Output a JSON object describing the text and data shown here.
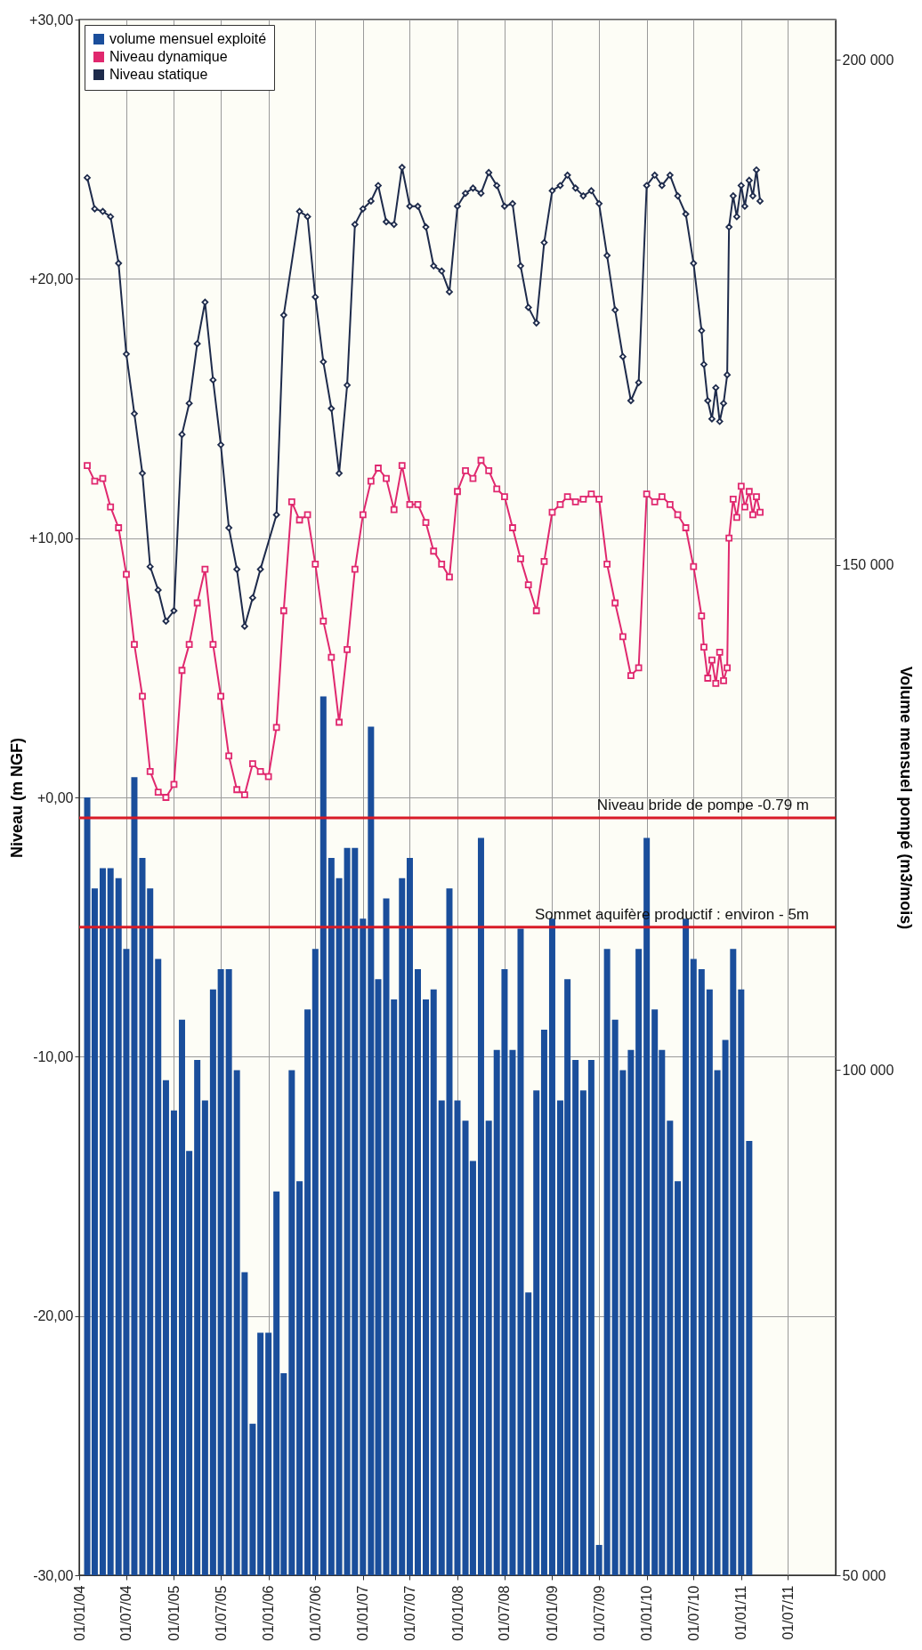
{
  "chart_data": {
    "type": "line",
    "ylabel": "Niveau (m NGF)",
    "y2label": "Volume mensuel pompé (m3/mois)",
    "xlim": [
      "2004-01-01",
      "2012-01-01"
    ],
    "xticks": [
      {
        "value": "2004-01-01",
        "label": "01/01/04"
      },
      {
        "value": "2004-07-01",
        "label": "01/07/04"
      },
      {
        "value": "2005-01-01",
        "label": "01/01/05"
      },
      {
        "value": "2005-07-01",
        "label": "01/07/05"
      },
      {
        "value": "2006-01-01",
        "label": "01/01/06"
      },
      {
        "value": "2006-07-01",
        "label": "01/07/06"
      },
      {
        "value": "2007-01-01",
        "label": "01/01/07"
      },
      {
        "value": "2007-07-01",
        "label": "01/07/07"
      },
      {
        "value": "2008-01-01",
        "label": "01/01/08"
      },
      {
        "value": "2008-07-01",
        "label": "01/07/08"
      },
      {
        "value": "2009-01-01",
        "label": "01/01/09"
      },
      {
        "value": "2009-07-01",
        "label": "01/07/09"
      },
      {
        "value": "2010-01-01",
        "label": "01/01/10"
      },
      {
        "value": "2010-07-01",
        "label": "01/07/10"
      },
      {
        "value": "2011-01-01",
        "label": "01/01/11"
      },
      {
        "value": "2011-07-01",
        "label": "01/07/11"
      }
    ],
    "ylim": [
      -30,
      30
    ],
    "yticks": [
      {
        "value": 30,
        "label": "+30,00"
      },
      {
        "value": 20,
        "label": "+20,00"
      },
      {
        "value": 10,
        "label": "+10,00"
      },
      {
        "value": 0,
        "label": "+0,00"
      },
      {
        "value": -10,
        "label": "-10,00"
      },
      {
        "value": -20,
        "label": "-20,00"
      },
      {
        "value": -30,
        "label": "-30,00"
      }
    ],
    "y2lim": [
      50000,
      204000
    ],
    "y2ticks": [
      {
        "value": 50000,
        "label": "50 000"
      },
      {
        "value": 100000,
        "label": "100 000"
      },
      {
        "value": 150000,
        "label": "150 000"
      },
      {
        "value": 200000,
        "label": "200 000"
      }
    ],
    "grid": true,
    "legend": "top left",
    "ref_lines": [
      {
        "axis": "y",
        "value": -0.79,
        "label": "Niveau bride de pompe -0.79 m",
        "color": "#d81b27"
      },
      {
        "axis": "y",
        "value": -5,
        "label": "Sommet aquifère productif : environ - 5m",
        "color": "#d81b27"
      }
    ],
    "series": [
      {
        "name": "volume mensuel exploité",
        "type": "bar",
        "axis": "y2",
        "color": "#1a4e9b",
        "x": [
          "2004-02",
          "2004-03",
          "2004-04",
          "2004-05",
          "2004-06",
          "2004-07",
          "2004-08",
          "2004-09",
          "2004-10",
          "2004-11",
          "2004-12",
          "2005-01",
          "2005-02",
          "2005-03",
          "2005-04",
          "2005-05",
          "2005-06",
          "2005-07",
          "2005-08",
          "2005-09",
          "2005-10",
          "2005-11",
          "2005-12",
          "2006-01",
          "2006-02",
          "2006-03",
          "2006-04",
          "2006-05",
          "2006-06",
          "2006-07",
          "2006-08",
          "2006-09",
          "2006-10",
          "2006-11",
          "2006-12",
          "2007-01",
          "2007-02",
          "2007-03",
          "2007-04",
          "2007-05",
          "2007-06",
          "2007-07",
          "2007-08",
          "2007-09",
          "2007-10",
          "2007-11",
          "2007-12",
          "2008-01",
          "2008-02",
          "2008-03",
          "2008-04",
          "2008-05",
          "2008-06",
          "2008-07",
          "2008-08",
          "2008-09",
          "2008-10",
          "2008-11",
          "2008-12",
          "2009-01",
          "2009-02",
          "2009-03",
          "2009-04",
          "2009-05",
          "2009-06",
          "2009-07",
          "2009-08",
          "2009-09",
          "2009-10",
          "2009-11",
          "2009-12",
          "2010-01",
          "2010-02",
          "2010-03",
          "2010-04",
          "2010-05",
          "2010-06",
          "2010-07",
          "2010-08",
          "2010-09",
          "2010-10",
          "2010-11",
          "2010-12",
          "2011-01",
          "2011-02"
        ],
        "values": [
          127000,
          118000,
          120000,
          120000,
          119000,
          112000,
          129000,
          121000,
          118000,
          111000,
          99000,
          96000,
          105000,
          92000,
          101000,
          97000,
          108000,
          110000,
          110000,
          100000,
          80000,
          65000,
          74000,
          74000,
          88000,
          70000,
          100000,
          89000,
          106000,
          112000,
          137000,
          121000,
          119000,
          122000,
          122000,
          115000,
          134000,
          109000,
          117000,
          107000,
          119000,
          121000,
          110000,
          107000,
          108000,
          97000,
          118000,
          97000,
          95000,
          91000,
          123000,
          95000,
          102000,
          110000,
          102000,
          114000,
          78000,
          98000,
          104000,
          115000,
          97000,
          109000,
          101000,
          98000,
          101000,
          53000,
          112000,
          105000,
          100000,
          102000,
          112000,
          123000,
          106000,
          102000,
          95000,
          89000,
          115000,
          111000,
          110000,
          108000,
          100000,
          103000,
          112000,
          108000,
          93000
        ]
      },
      {
        "name": "Niveau dynamique",
        "color": "#e0286e",
        "marker": "square",
        "x": [
          "2004-02",
          "2004-03",
          "2004-04",
          "2004-05",
          "2004-06",
          "2004-07",
          "2004-08",
          "2004-09",
          "2004-10",
          "2004-11",
          "2004-12",
          "2005-01",
          "2005-02",
          "2005-03",
          "2005-04",
          "2005-05",
          "2005-06",
          "2005-07",
          "2005-08",
          "2005-09",
          "2005-10",
          "2005-11",
          "2005-12",
          "2006-01",
          "2006-02",
          "2006-03",
          "2006-04",
          "2006-05",
          "2006-06",
          "2006-07",
          "2006-08",
          "2006-09",
          "2006-10",
          "2006-11",
          "2006-12",
          "2007-01",
          "2007-02",
          "2007-03",
          "2007-04",
          "2007-05",
          "2007-06",
          "2007-07",
          "2007-08",
          "2007-09",
          "2007-10",
          "2007-11",
          "2007-12",
          "2008-01",
          "2008-02",
          "2008-03",
          "2008-04",
          "2008-05",
          "2008-06",
          "2008-07",
          "2008-08",
          "2008-09",
          "2008-10",
          "2008-11",
          "2008-12",
          "2009-01",
          "2009-02",
          "2009-03",
          "2009-04",
          "2009-05",
          "2009-06",
          "2009-07",
          "2009-08",
          "2009-09",
          "2009-10",
          "2009-11",
          "2009-12",
          "2010-01",
          "2010-02",
          "2010-03",
          "2010-04",
          "2010-05",
          "2010-06",
          "2010-07",
          "2010-08",
          "2010-08-10",
          "2010-08-25",
          "2010-09-10",
          "2010-09-25",
          "2010-10-10",
          "2010-10-25",
          "2010-11-08",
          "2010-11-15",
          "2010-12-01",
          "2010-12-15",
          "2011-01-01",
          "2011-01-15",
          "2011-02-01",
          "2011-02-15",
          "2011-03-01",
          "2011-03-15"
        ],
        "values": [
          12.8,
          12.2,
          12.3,
          11.2,
          10.4,
          8.6,
          5.9,
          3.9,
          1.0,
          0.2,
          0.0,
          0.5,
          4.9,
          5.9,
          7.5,
          8.8,
          5.9,
          3.9,
          1.6,
          0.3,
          0.1,
          1.3,
          1.0,
          0.8,
          2.7,
          7.2,
          11.4,
          10.7,
          10.9,
          9.0,
          6.8,
          5.4,
          2.9,
          5.7,
          8.8,
          10.9,
          12.2,
          12.7,
          12.3,
          11.1,
          12.8,
          11.3,
          11.3,
          10.6,
          9.5,
          9.0,
          8.5,
          11.8,
          12.6,
          12.3,
          13.0,
          12.6,
          11.9,
          11.6,
          10.4,
          9.2,
          8.2,
          7.2,
          9.1,
          11.0,
          11.3,
          11.6,
          11.4,
          11.5,
          11.7,
          11.5,
          9.0,
          7.5,
          6.2,
          4.7,
          5.0,
          11.7,
          11.4,
          11.6,
          11.3,
          10.9,
          10.4,
          8.9,
          7.0,
          5.8,
          4.6,
          5.3,
          4.4,
          5.6,
          4.5,
          5.0,
          10.0,
          11.5,
          10.8,
          12.0,
          11.2,
          11.8,
          10.9,
          11.6,
          11.0
        ]
      },
      {
        "name": "Niveau statique",
        "color": "#1e2b4b",
        "marker": "diamond",
        "x": [
          "2004-02",
          "2004-03",
          "2004-04",
          "2004-05",
          "2004-06",
          "2004-07",
          "2004-08",
          "2004-09",
          "2004-10",
          "2004-11",
          "2004-12",
          "2005-01",
          "2005-02",
          "2005-03",
          "2005-04",
          "2005-05",
          "2005-06",
          "2005-07",
          "2005-08",
          "2005-09",
          "2005-10",
          "2005-11",
          "2005-12",
          "2006-02",
          "2006-03",
          "2006-05",
          "2006-06",
          "2006-07",
          "2006-08",
          "2006-09",
          "2006-10",
          "2006-11",
          "2006-12",
          "2007-01",
          "2007-02",
          "2007-03",
          "2007-04",
          "2007-05",
          "2007-06",
          "2007-07",
          "2007-08",
          "2007-09",
          "2007-10",
          "2007-11",
          "2007-12",
          "2008-01",
          "2008-02",
          "2008-03",
          "2008-04",
          "2008-05",
          "2008-06",
          "2008-07",
          "2008-08",
          "2008-09",
          "2008-10",
          "2008-11",
          "2008-12",
          "2009-01",
          "2009-02",
          "2009-03",
          "2009-04",
          "2009-05",
          "2009-06",
          "2009-07",
          "2009-08",
          "2009-09",
          "2009-10",
          "2009-11",
          "2009-12",
          "2010-01",
          "2010-02",
          "2010-03",
          "2010-04",
          "2010-05",
          "2010-06",
          "2010-07",
          "2010-08",
          "2010-08-10",
          "2010-08-25",
          "2010-09-10",
          "2010-09-25",
          "2010-10-10",
          "2010-10-25",
          "2010-11-08",
          "2010-11-15",
          "2010-12-01",
          "2010-12-15",
          "2011-01-01",
          "2011-01-15",
          "2011-02-01",
          "2011-02-15",
          "2011-03-01",
          "2011-03-15"
        ],
        "values": [
          23.9,
          22.7,
          22.6,
          22.4,
          20.6,
          17.1,
          14.8,
          12.5,
          8.9,
          8.0,
          6.8,
          7.2,
          14.0,
          15.2,
          17.5,
          19.1,
          16.1,
          13.6,
          10.4,
          8.8,
          6.6,
          7.7,
          8.8,
          10.9,
          18.6,
          22.6,
          22.4,
          19.3,
          16.8,
          15.0,
          12.5,
          15.9,
          22.1,
          22.7,
          23.0,
          23.6,
          22.2,
          22.1,
          24.3,
          22.8,
          22.8,
          22.0,
          20.5,
          20.3,
          19.5,
          22.8,
          23.3,
          23.5,
          23.3,
          24.1,
          23.6,
          22.8,
          22.9,
          20.5,
          18.9,
          18.3,
          21.4,
          23.4,
          23.6,
          24.0,
          23.5,
          23.2,
          23.4,
          22.9,
          20.9,
          18.8,
          17.0,
          15.3,
          16.0,
          23.6,
          24.0,
          23.6,
          24.0,
          23.2,
          22.5,
          20.6,
          18.0,
          16.7,
          15.3,
          14.6,
          15.8,
          14.5,
          15.2,
          16.3,
          22.0,
          23.2,
          22.4,
          23.6,
          22.8,
          23.8,
          23.2,
          24.2,
          23.0
        ]
      }
    ]
  }
}
